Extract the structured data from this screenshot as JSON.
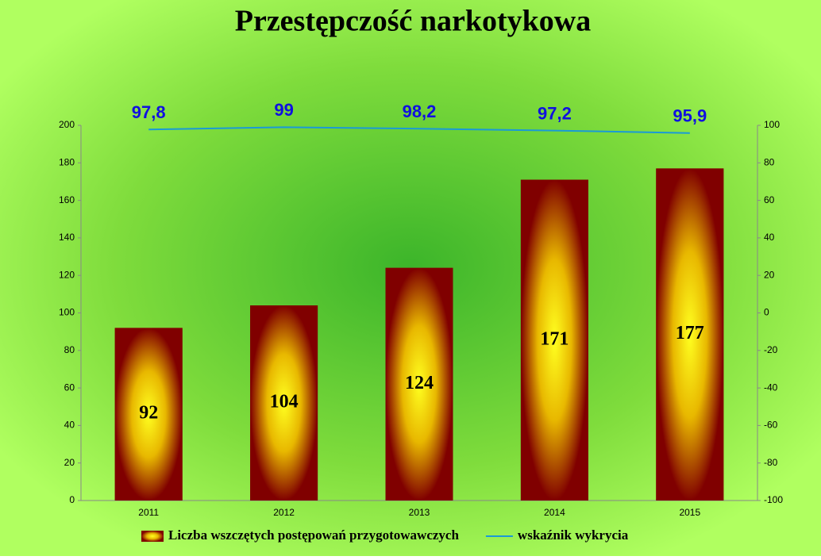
{
  "chart_data": {
    "type": "bar_line",
    "title": "Przestępczość narkotykowa",
    "categories": [
      "2011",
      "2012",
      "2013",
      "2014",
      "2015"
    ],
    "series": [
      {
        "name": "Liczba wszczętych postępowań przygotowawczych",
        "type": "bar",
        "color": "#800000",
        "values": [
          92,
          104,
          124,
          171,
          177
        ]
      },
      {
        "name": "wskaźnik wykrycia",
        "type": "line",
        "axis": "y2",
        "color": "#1a9ad6",
        "values": [
          97.8,
          99,
          98.2,
          97.2,
          95.9
        ],
        "value_labels": [
          "97,8",
          "99",
          "98,2",
          "97,2",
          "95,9"
        ]
      }
    ],
    "ylim": [
      0,
      200
    ],
    "yticks": [
      0,
      20,
      40,
      60,
      80,
      100,
      120,
      140,
      160,
      180,
      200
    ],
    "y2lim": [
      -100,
      100
    ],
    "y2ticks": [
      -100,
      -80,
      -60,
      -40,
      -20,
      0,
      20,
      40,
      60,
      80,
      100
    ],
    "legend": "bottom"
  }
}
